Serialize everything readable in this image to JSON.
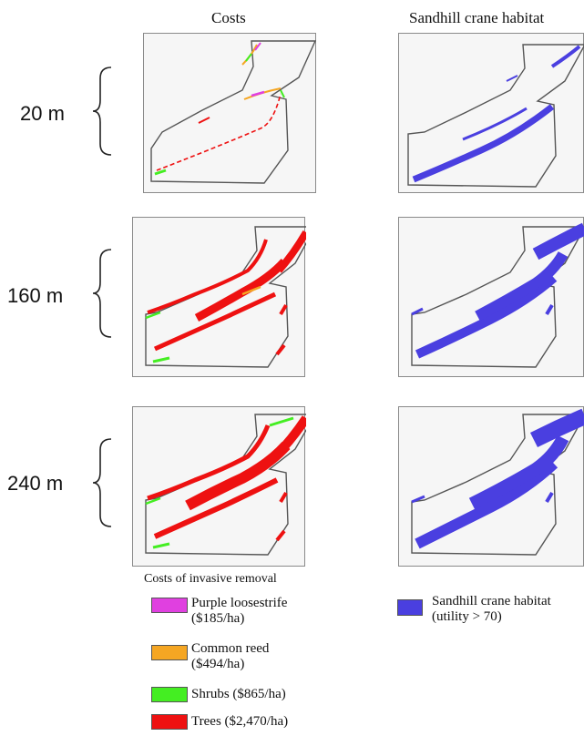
{
  "columns": {
    "costs": "Costs",
    "habitat": "Sandhill  crane habitat"
  },
  "rows": [
    {
      "label": "20 m"
    },
    {
      "label": "160 m"
    },
    {
      "label": "240 m"
    }
  ],
  "legend_costs": {
    "title": "Costs of invasive removal",
    "items": [
      {
        "line1": "Purple loosestrife",
        "line2": "($185/ha)",
        "color": "#e040e0"
      },
      {
        "line1": "Common reed",
        "line2": "($494/ha)",
        "color": "#f5a623"
      },
      {
        "line1": "Shrubs ($865/ha)",
        "line2": "",
        "color": "#44ee22"
      },
      {
        "line1": "Trees ($2,470/ha)",
        "line2": "",
        "color": "#ee1111"
      }
    ]
  },
  "legend_habitat": {
    "line1": "Sandhill  crane habitat",
    "line2": "(utility > 70)",
    "color": "#4a3fe0"
  },
  "colors": {
    "outline": "#555555",
    "tree": "#ee1111",
    "shrub": "#44ee22",
    "loosestrife": "#e040e0",
    "reed": "#f5a623",
    "habitat": "#4a3fe0",
    "panel_bg": "#f6f6f6"
  }
}
